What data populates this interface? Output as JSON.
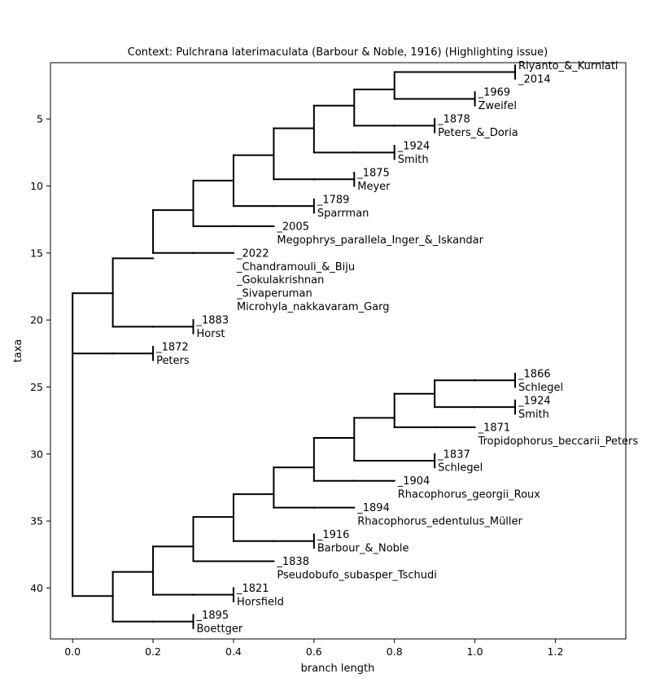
{
  "chart": {
    "title": "Context: Pulchrana laterimaculata (Barbour & Noble, 1916) (Highlighting issue)",
    "xlabel": "branch length",
    "ylabel": "taxa",
    "xlim": [
      -0.055,
      1.375
    ],
    "ylim": [
      43.8,
      0.8
    ],
    "x_ticks": [
      "0.0",
      "0.2",
      "0.4",
      "0.6",
      "0.8",
      "1.0",
      "1.2"
    ],
    "x_tick_values": [
      0,
      0.2,
      0.4,
      0.6,
      0.8,
      1.0,
      1.2
    ],
    "y_ticks": [
      "5",
      "10",
      "15",
      "20",
      "25",
      "30",
      "35",
      "40"
    ],
    "y_tick_values": [
      5,
      10,
      15,
      20,
      25,
      30,
      35,
      40
    ],
    "line_color": "#000000"
  },
  "tree": {
    "x": 0,
    "y": 30.4,
    "children": [
      {
        "x": 0.1,
        "y": 18,
        "children": [
          {
            "x": 0.2,
            "y": 15.4,
            "children": [
              {
                "x": 0.3,
                "y": 11.8,
                "children": [
                  {
                    "x": 0.4,
                    "y": 9.6,
                    "children": [
                      {
                        "x": 0.5,
                        "y": 7.7,
                        "children": [
                          {
                            "x": 0.6,
                            "y": 5.7,
                            "children": [
                              {
                                "x": 0.7,
                                "y": 4,
                                "children": [
                                  {
                                    "x": 0.8,
                                    "y": 2.8,
                                    "children": [
                                      {
                                        "x": 0.9,
                                        "y": 1.5,
                                        "children": [
                                          {
                                            "x": 1.1,
                                            "y": 1.5,
                                            "leaf": true,
                                            "y1": 1,
                                            "y2": 2,
                                            "label": [
                                              "Riyanto_&_Kurniati",
                                              "_2014"
                                            ]
                                          }
                                        ]
                                      },
                                      {
                                        "x": 0.9,
                                        "y": 3.5,
                                        "children": [
                                          {
                                            "x": 1.0,
                                            "y": 3.5,
                                            "leaf": true,
                                            "y1": 3,
                                            "y2": 4,
                                            "label": [
                                              "_1969",
                                              "Zweifel"
                                            ]
                                          }
                                        ]
                                      }
                                    ]
                                  },
                                  {
                                    "x": 0.8,
                                    "y": 5.5,
                                    "children": [
                                      {
                                        "x": 0.9,
                                        "y": 5.5,
                                        "leaf": true,
                                        "y1": 5,
                                        "y2": 6,
                                        "label": [
                                          "_1878",
                                          "Peters_&_Doria"
                                        ]
                                      }
                                    ]
                                  }
                                ]
                              },
                              {
                                "x": 0.7,
                                "y": 7.5,
                                "children": [
                                  {
                                    "x": 0.8,
                                    "y": 7.5,
                                    "leaf": true,
                                    "y1": 7,
                                    "y2": 8,
                                    "label": [
                                      "_1924",
                                      "Smith"
                                    ]
                                  }
                                ]
                              }
                            ]
                          },
                          {
                            "x": 0.6,
                            "y": 9.5,
                            "children": [
                              {
                                "x": 0.7,
                                "y": 9.5,
                                "leaf": true,
                                "y1": 9,
                                "y2": 10,
                                "label": [
                                  "_1875",
                                  "Meyer"
                                ]
                              }
                            ]
                          }
                        ]
                      },
                      {
                        "x": 0.5,
                        "y": 11.5,
                        "children": [
                          {
                            "x": 0.6,
                            "y": 11.5,
                            "leaf": true,
                            "y1": 11,
                            "y2": 12,
                            "label": [
                              "_1789",
                              "Sparrman"
                            ]
                          }
                        ]
                      }
                    ]
                  },
                  {
                    "x": 0.4,
                    "y": 13,
                    "children": [
                      {
                        "x": 0.5,
                        "y": 13,
                        "leaf": true,
                        "line": true,
                        "y1": 13,
                        "y2": 14,
                        "label": [
                          "_2005",
                          "Megophrys_parallela_Inger_&_Iskandar"
                        ]
                      }
                    ]
                  }
                ]
              },
              {
                "x": 0.3,
                "y": 15,
                "children": [
                  {
                    "x": 0.4,
                    "y": 15,
                    "leaf": true,
                    "line": true,
                    "y1": 15,
                    "y2": 19,
                    "label": [
                      "_2022",
                      "_Chandramouli_&_Biju",
                      "_Gokulakrishnan",
                      "_Sivaperuman",
                      "Microhyla_nakkavaram_Garg"
                    ]
                  }
                ]
              }
            ]
          },
          {
            "x": 0.2,
            "y": 20.5,
            "children": [
              {
                "x": 0.3,
                "y": 20.5,
                "leaf": true,
                "y1": 20,
                "y2": 21,
                "label": [
                  "_1883",
                  "Horst"
                ]
              }
            ]
          }
        ]
      },
      {
        "x": 0.1,
        "y": 22.5,
        "children": [
          {
            "x": 0.2,
            "y": 22.5,
            "leaf": true,
            "y1": 22,
            "y2": 23,
            "label": [
              "_1872",
              "Peters"
            ]
          }
        ]
      },
      {
        "x": 0.1,
        "y": 40.6,
        "children": [
          {
            "x": 0.2,
            "y": 38.8,
            "children": [
              {
                "x": 0.3,
                "y": 36.9,
                "children": [
                  {
                    "x": 0.4,
                    "y": 34.7,
                    "children": [
                      {
                        "x": 0.5,
                        "y": 33,
                        "children": [
                          {
                            "x": 0.6,
                            "y": 31,
                            "children": [
                              {
                                "x": 0.7,
                                "y": 28.8,
                                "children": [
                                  {
                                    "x": 0.8,
                                    "y": 27.3,
                                    "children": [
                                      {
                                        "x": 0.9,
                                        "y": 25.5,
                                        "children": [
                                          {
                                            "x": 1.0,
                                            "y": 24.5,
                                            "children": [
                                              {
                                                "x": 1.1,
                                                "y": 24.5,
                                                "leaf": true,
                                                "y1": 24,
                                                "y2": 25,
                                                "label": [
                                                  "_1866",
                                                  "Schlegel"
                                                ]
                                              }
                                            ]
                                          },
                                          {
                                            "x": 1.0,
                                            "y": 26.5,
                                            "children": [
                                              {
                                                "x": 1.1,
                                                "y": 26.5,
                                                "leaf": true,
                                                "y1": 26,
                                                "y2": 27,
                                                "label": [
                                                  "_1924",
                                                  "Smith"
                                                ]
                                              }
                                            ]
                                          }
                                        ]
                                      },
                                      {
                                        "x": 0.9,
                                        "y": 28,
                                        "children": [
                                          {
                                            "x": 1.0,
                                            "y": 28,
                                            "leaf": true,
                                            "line": true,
                                            "y1": 28,
                                            "y2": 29,
                                            "label": [
                                              "_1871",
                                              "Tropidophorus_beccarii_Peters"
                                            ]
                                          }
                                        ]
                                      }
                                    ]
                                  },
                                  {
                                    "x": 0.8,
                                    "y": 30.5,
                                    "children": [
                                      {
                                        "x": 0.9,
                                        "y": 30.5,
                                        "leaf": true,
                                        "y1": 30,
                                        "y2": 31,
                                        "label": [
                                          "_1837",
                                          "Schlegel"
                                        ]
                                      }
                                    ]
                                  }
                                ]
                              },
                              {
                                "x": 0.7,
                                "y": 32,
                                "children": [
                                  {
                                    "x": 0.8,
                                    "y": 32,
                                    "leaf": true,
                                    "line": true,
                                    "y1": 32,
                                    "y2": 33,
                                    "label": [
                                      "_1904",
                                      "Rhacophorus_georgii_Roux"
                                    ]
                                  }
                                ]
                              }
                            ]
                          },
                          {
                            "x": 0.6,
                            "y": 34,
                            "children": [
                              {
                                "x": 0.7,
                                "y": 34,
                                "leaf": true,
                                "line": true,
                                "y1": 34,
                                "y2": 35,
                                "label": [
                                  "_1894",
                                  "Rhacophorus_edentulus_Müller"
                                ]
                              }
                            ]
                          }
                        ]
                      },
                      {
                        "x": 0.5,
                        "y": 36.5,
                        "children": [
                          {
                            "x": 0.6,
                            "y": 36.5,
                            "leaf": true,
                            "y1": 36,
                            "y2": 37,
                            "label": [
                              "_1916",
                              "Barbour_&_Noble"
                            ]
                          }
                        ]
                      }
                    ]
                  },
                  {
                    "x": 0.4,
                    "y": 38,
                    "children": [
                      {
                        "x": 0.5,
                        "y": 38,
                        "leaf": true,
                        "line": true,
                        "y1": 38,
                        "y2": 39,
                        "label": [
                          "_1838",
                          "Pseudobufo_subasper_Tschudi"
                        ]
                      }
                    ]
                  }
                ]
              },
              {
                "x": 0.3,
                "y": 40.5,
                "children": [
                  {
                    "x": 0.4,
                    "y": 40.5,
                    "leaf": true,
                    "y1": 40,
                    "y2": 41,
                    "label": [
                      "_1821",
                      "Horsfield"
                    ]
                  }
                ]
              }
            ]
          },
          {
            "x": 0.2,
            "y": 42.5,
            "children": [
              {
                "x": 0.3,
                "y": 42.5,
                "leaf": true,
                "y1": 42,
                "y2": 43,
                "label": [
                  "_1895",
                  "Boettger"
                ]
              }
            ]
          }
        ]
      }
    ]
  }
}
